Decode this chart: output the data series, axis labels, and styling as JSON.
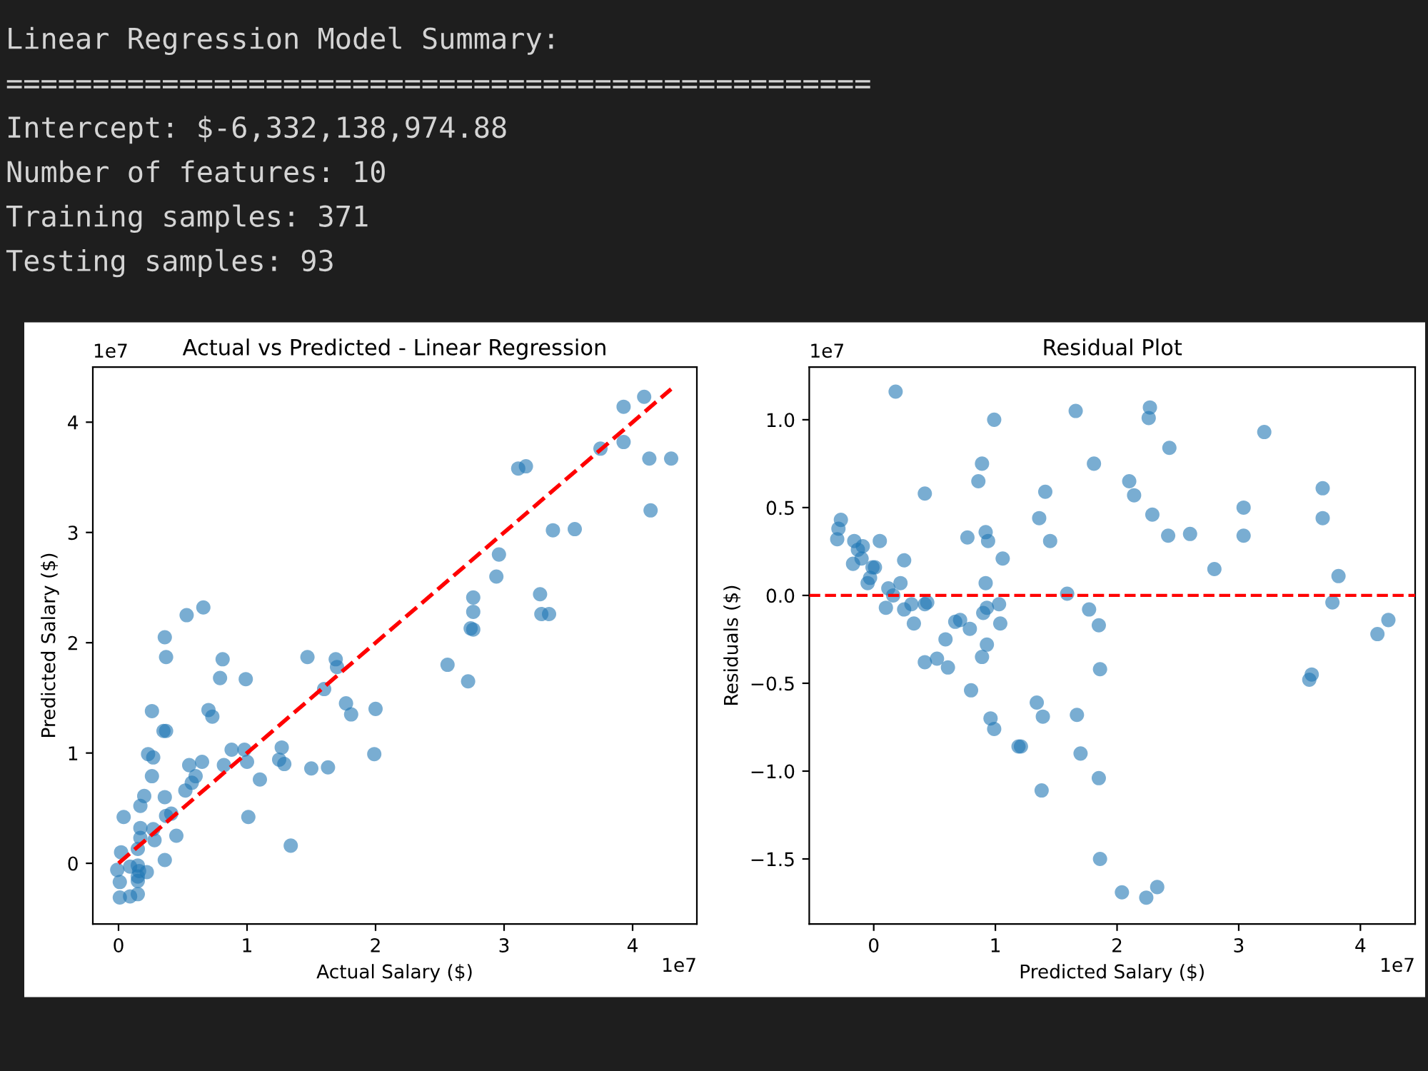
{
  "chart_data": [
    {
      "type": "other",
      "annotations": [
        "Linear Regression Model Summary:",
        "==================================================",
        "Intercept: $-6,332,138,974.88",
        "Number of features: 10",
        "Training samples: 371",
        "Testing samples: 93"
      ]
    },
    {
      "type": "scatter",
      "title": "Actual vs Predicted - Linear Regression",
      "xlabel": "Actual Salary ($)",
      "ylabel": "Predicted Salary ($)",
      "xlim": [
        -0.2,
        4.5
      ],
      "ylim": [
        -0.55,
        4.5
      ],
      "xticks": [
        0,
        1,
        2,
        3,
        4
      ],
      "yticks": [
        0,
        1,
        2,
        3,
        4
      ],
      "annotations": [
        "1e7",
        "1e7"
      ],
      "series": [
        {
          "type": "scatter",
          "marker": "circle",
          "color": "#1f77b4",
          "x": [
            0.53,
            0.66,
            2.74,
            2.76,
            2.76,
            2.76,
            2.94,
            2.96,
            3.11,
            3.17,
            3.28,
            3.29,
            3.35,
            3.38,
            3.55,
            3.75,
            3.93,
            3.93,
            4.09,
            4.13,
            4.3,
            4.14,
            0.36,
            0.37,
            0.81,
            0.79,
            0.99,
            1.47,
            1.69,
            1.7,
            1.6,
            1.77,
            1.81,
            2.0,
            1.99,
            2.56,
            2.72,
            0.26,
            0.7,
            0.73,
            0.35,
            0.37,
            0.23,
            0.27,
            0.26,
            0.55,
            0.65,
            0.6,
            0.57,
            0.52,
            0.82,
            0.88,
            0.98,
            1.0,
            1.1,
            1.27,
            1.25,
            1.29,
            1.5,
            1.63,
            1.01,
            1.34,
            0.2,
            0.17,
            0.04,
            0.36,
            0.37,
            0.41,
            0.17,
            0.27,
            0.45,
            0.28,
            0.17,
            0.36,
            0.02,
            0.15,
            0.15,
            0.16,
            0.15,
            0.09,
            0.22,
            -0.01,
            0.01,
            0.01,
            0.09,
            0.15,
            0.15
          ],
          "values": [
            2.25,
            2.32,
            2.13,
            2.12,
            2.41,
            2.28,
            2.6,
            2.8,
            3.58,
            3.6,
            2.44,
            2.26,
            2.26,
            3.02,
            3.03,
            3.76,
            3.82,
            4.14,
            4.23,
            3.67,
            3.67,
            3.2,
            2.05,
            1.87,
            1.85,
            1.68,
            1.67,
            1.87,
            1.85,
            1.78,
            1.58,
            1.45,
            1.35,
            1.4,
            0.99,
            1.8,
            1.65,
            1.38,
            1.39,
            1.33,
            1.2,
            1.2,
            0.99,
            0.96,
            0.79,
            0.89,
            0.92,
            0.79,
            0.73,
            0.66,
            0.89,
            1.03,
            1.03,
            0.92,
            0.76,
            1.05,
            0.94,
            0.9,
            0.86,
            0.87,
            0.42,
            0.16,
            0.61,
            0.52,
            0.42,
            0.6,
            0.43,
            0.45,
            0.32,
            0.31,
            0.25,
            0.21,
            0.23,
            0.03,
            0.1,
            0.13,
            -0.02,
            -0.07,
            -0.12,
            -0.03,
            -0.08,
            -0.06,
            -0.17,
            -0.31,
            -0.3,
            -0.28,
            -0.16
          ]
        },
        {
          "type": "line",
          "marker": "none",
          "line_style": "dashed",
          "color": "#ff0000",
          "x": [
            0,
            4.3
          ],
          "values": [
            0,
            4.3
          ]
        }
      ]
    },
    {
      "type": "scatter",
      "title": "Residual Plot",
      "xlabel": "Predicted Salary ($)",
      "ylabel": "Residuals ($)",
      "xlim": [
        -0.53,
        4.45
      ],
      "ylim": [
        -1.87,
        1.3
      ],
      "xticks": [
        0,
        1,
        2,
        3,
        4
      ],
      "yticks": [
        {
          "value": -1.5,
          "label": "−1.5"
        },
        {
          "value": -1.0,
          "label": "−1.0"
        },
        {
          "value": -0.5,
          "label": "−0.5"
        },
        {
          "value": 0.0,
          "label": "0.0"
        },
        {
          "value": 0.5,
          "label": "0.5"
        },
        {
          "value": 1.0,
          "label": "1.0"
        }
      ],
      "annotations": [
        "1e7",
        "1e7"
      ],
      "ref_lines": [
        {
          "axis": "y",
          "value": 0,
          "color": "#ff0000",
          "line_style": "dashed"
        }
      ],
      "series": [
        {
          "type": "scatter",
          "marker": "circle",
          "color": "#1f77b4",
          "x": [
            -0.3,
            -0.29,
            -0.27,
            0.18,
            -0.16,
            -0.09,
            -0.13,
            -0.17,
            -0.1,
            -0.01,
            0.01,
            -0.03,
            -0.05,
            0.05,
            0.25,
            0.12,
            0.22,
            0.16,
            0.1,
            0.25,
            0.31,
            0.42,
            0.44,
            0.33,
            0.42,
            0.59,
            0.67,
            0.71,
            0.79,
            0.77,
            0.86,
            0.89,
            0.99,
            0.92,
            0.94,
            1.06,
            0.92,
            0.93,
            0.9,
            1.03,
            1.04,
            0.93,
            0.89,
            1.36,
            1.41,
            1.45,
            1.66,
            1.59,
            1.81,
            1.77,
            1.85,
            2.1,
            2.14,
            2.29,
            2.26,
            2.27,
            2.43,
            2.42,
            2.6,
            2.8,
            3.04,
            3.04,
            3.21,
            3.69,
            3.69,
            3.82,
            3.77,
            4.23,
            4.14,
            0.42,
            0.52,
            0.61,
            0.8,
            1.86,
            1.34,
            1.39,
            1.67,
            0.96,
            0.99,
            1.19,
            1.21,
            1.7,
            1.85,
            1.38,
            1.86,
            2.04,
            2.24,
            2.33,
            3.6,
            3.58
          ],
          "values": [
            0.32,
            0.38,
            0.43,
            1.16,
            0.31,
            0.28,
            0.26,
            0.18,
            0.21,
            0.16,
            0.16,
            0.1,
            0.07,
            0.31,
            0.2,
            0.04,
            0.07,
            0.0,
            -0.07,
            -0.08,
            -0.05,
            -0.05,
            -0.04,
            -0.16,
            0.58,
            -0.25,
            -0.15,
            -0.14,
            -0.19,
            0.33,
            0.65,
            0.75,
            1.0,
            0.36,
            0.31,
            0.21,
            0.07,
            -0.07,
            -0.1,
            -0.05,
            -0.16,
            -0.28,
            -0.35,
            0.44,
            0.59,
            0.31,
            1.05,
            0.01,
            0.75,
            -0.08,
            -0.17,
            0.65,
            0.57,
            0.46,
            1.01,
            1.07,
            0.84,
            0.34,
            0.35,
            0.15,
            0.5,
            0.34,
            0.93,
            0.61,
            0.44,
            0.11,
            -0.04,
            -0.14,
            -0.22,
            -0.38,
            -0.36,
            -0.41,
            -0.54,
            -0.42,
            -0.61,
            -0.69,
            -0.68,
            -0.7,
            -0.76,
            -0.86,
            -0.86,
            -0.9,
            -1.04,
            -1.11,
            -1.5,
            -1.69,
            -1.72,
            -1.66,
            -0.45,
            -0.48
          ]
        }
      ]
    }
  ]
}
